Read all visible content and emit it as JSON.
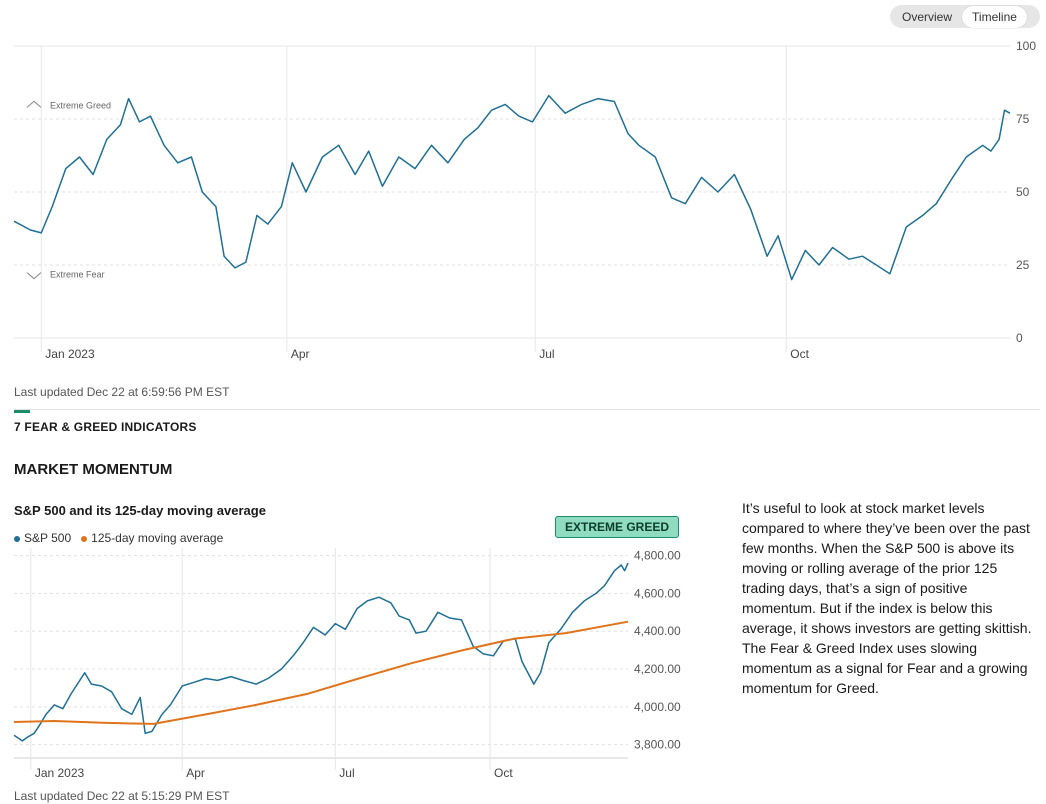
{
  "tabs": [
    "Overview",
    "Timeline"
  ],
  "active_tab": "Timeline",
  "timeline": {
    "chart_data": {
      "type": "line",
      "title": "",
      "ylim": [
        0,
        100
      ],
      "yticks": [
        0,
        25,
        50,
        75,
        100
      ],
      "xticks": [
        "Jan 2023",
        "Apr",
        "Jul",
        "Oct"
      ],
      "zone_labels": {
        "greed": "Extreme Greed",
        "fear": "Extreme Fear"
      },
      "grid": true,
      "series": [
        {
          "color": "#1f6f96",
          "x": [
            "2022-12-22",
            "2022-12-28",
            "2023-01-01",
            "2023-01-05",
            "2023-01-10",
            "2023-01-15",
            "2023-01-20",
            "2023-01-25",
            "2023-01-30",
            "2023-02-02",
            "2023-02-06",
            "2023-02-10",
            "2023-02-15",
            "2023-02-20",
            "2023-02-25",
            "2023-03-01",
            "2023-03-06",
            "2023-03-09",
            "2023-03-13",
            "2023-03-17",
            "2023-03-21",
            "2023-03-25",
            "2023-03-30",
            "2023-04-03",
            "2023-04-08",
            "2023-04-14",
            "2023-04-20",
            "2023-04-26",
            "2023-05-01",
            "2023-05-06",
            "2023-05-12",
            "2023-05-18",
            "2023-05-24",
            "2023-05-30",
            "2023-06-05",
            "2023-06-10",
            "2023-06-15",
            "2023-06-20",
            "2023-06-25",
            "2023-06-30",
            "2023-07-06",
            "2023-07-12",
            "2023-07-18",
            "2023-07-24",
            "2023-07-30",
            "2023-08-04",
            "2023-08-08",
            "2023-08-14",
            "2023-08-20",
            "2023-08-25",
            "2023-08-31",
            "2023-09-06",
            "2023-09-12",
            "2023-09-18",
            "2023-09-24",
            "2023-09-28",
            "2023-10-03",
            "2023-10-08",
            "2023-10-13",
            "2023-10-18",
            "2023-10-24",
            "2023-10-29",
            "2023-11-03",
            "2023-11-08",
            "2023-11-14",
            "2023-11-20",
            "2023-11-25",
            "2023-12-01",
            "2023-12-06",
            "2023-12-12",
            "2023-12-15",
            "2023-12-18",
            "2023-12-20",
            "2023-12-22"
          ],
          "y": [
            40,
            37,
            36,
            45,
            58,
            62,
            56,
            68,
            73,
            82,
            74,
            76,
            66,
            60,
            62,
            50,
            45,
            28,
            24,
            26,
            42,
            39,
            45,
            60,
            50,
            62,
            66,
            56,
            64,
            52,
            62,
            58,
            66,
            60,
            68,
            72,
            78,
            80,
            76,
            74,
            83,
            77,
            80,
            82,
            81,
            70,
            66,
            62,
            48,
            46,
            55,
            50,
            56,
            44,
            28,
            35,
            20,
            30,
            25,
            31,
            27,
            28,
            25,
            22,
            38,
            42,
            46,
            55,
            62,
            66,
            64,
            68,
            78,
            77
          ]
        }
      ]
    },
    "updated": "Last updated Dec 22 at 6:59:56 PM EST"
  },
  "indicators_title": "7 FEAR & GREED INDICATORS",
  "section_title": "MARKET MOMENTUM",
  "momentum": {
    "title": "S&P 500 and its 125-day moving average",
    "badge": "EXTREME GREED",
    "updated": "Last updated Dec 22 at 5:15:29 PM EST",
    "description": "It’s useful to look at stock market levels compared to where they’ve been over the past few months. When the S&P 500 is above its moving or rolling average of the prior 125 trading days, that’s a sign of positive momentum. But if the index is below this average, it shows investors are getting skittish. The Fear & Greed Index uses slowing momentum as a signal for Fear and a growing momentum for Greed.",
    "chart_data": {
      "type": "line",
      "xticks": [
        "Jan 2023",
        "Apr",
        "Jul",
        "Oct"
      ],
      "yticks": [
        3800,
        4000,
        4200,
        4400,
        4600,
        4800
      ],
      "ytick_labels": [
        "3,800.00",
        "4,000.00",
        "4,200.00",
        "4,400.00",
        "4,600.00",
        "4,800.00"
      ],
      "ylim": [
        3740,
        4840
      ],
      "grid": true,
      "legend_placement": "top-left",
      "series": [
        {
          "name": "S&P 500",
          "color": "#1f6f96",
          "x": [
            "2022-12-22",
            "2022-12-27",
            "2022-12-30",
            "2023-01-03",
            "2023-01-06",
            "2023-01-10",
            "2023-01-15",
            "2023-01-20",
            "2023-01-25",
            "2023-02-02",
            "2023-02-06",
            "2023-02-12",
            "2023-02-18",
            "2023-02-24",
            "2023-03-02",
            "2023-03-07",
            "2023-03-10",
            "2023-03-14",
            "2023-03-20",
            "2023-03-25",
            "2023-04-01",
            "2023-04-08",
            "2023-04-15",
            "2023-04-22",
            "2023-04-30",
            "2023-05-07",
            "2023-05-15",
            "2023-05-22",
            "2023-05-30",
            "2023-06-06",
            "2023-06-12",
            "2023-06-18",
            "2023-06-25",
            "2023-07-01",
            "2023-07-07",
            "2023-07-14",
            "2023-07-20",
            "2023-07-27",
            "2023-08-03",
            "2023-08-08",
            "2023-08-14",
            "2023-08-18",
            "2023-08-24",
            "2023-08-31",
            "2023-09-07",
            "2023-09-14",
            "2023-09-21",
            "2023-09-27",
            "2023-10-03",
            "2023-10-09",
            "2023-10-16",
            "2023-10-20",
            "2023-10-27",
            "2023-10-31",
            "2023-11-05",
            "2023-11-12",
            "2023-11-19",
            "2023-11-26",
            "2023-12-03",
            "2023-12-08",
            "2023-12-14",
            "2023-12-18",
            "2023-12-20",
            "2023-12-22"
          ],
          "y": [
            3850,
            3820,
            3840,
            3860,
            3900,
            3960,
            4010,
            3990,
            4070,
            4180,
            4120,
            4110,
            4080,
            3990,
            3960,
            4050,
            3860,
            3870,
            3960,
            4010,
            4110,
            4130,
            4150,
            4140,
            4160,
            4140,
            4120,
            4150,
            4200,
            4270,
            4340,
            4420,
            4380,
            4440,
            4410,
            4520,
            4560,
            4580,
            4550,
            4480,
            4460,
            4390,
            4400,
            4500,
            4470,
            4460,
            4320,
            4280,
            4270,
            4350,
            4360,
            4240,
            4120,
            4180,
            4340,
            4410,
            4500,
            4560,
            4600,
            4640,
            4720,
            4750,
            4720,
            4760
          ]
        },
        {
          "name": "125-day moving average",
          "color": "#e0741c",
          "x": [
            "2022-12-22",
            "2023-01-15",
            "2023-02-15",
            "2023-03-15",
            "2023-04-15",
            "2023-05-15",
            "2023-06-15",
            "2023-07-15",
            "2023-08-15",
            "2023-09-15",
            "2023-10-15",
            "2023-11-15",
            "2023-12-22"
          ],
          "y": [
            3920,
            3925,
            3915,
            3910,
            3960,
            4010,
            4070,
            4150,
            4230,
            4300,
            4360,
            4390,
            4450
          ]
        }
      ]
    }
  }
}
